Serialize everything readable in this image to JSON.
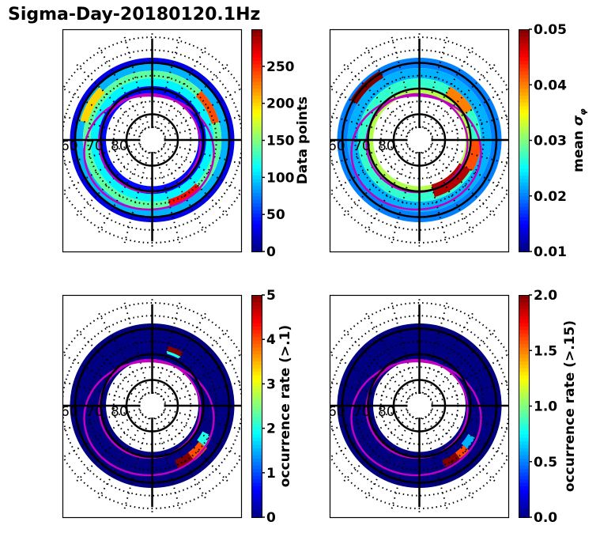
{
  "figure": {
    "title": "Sigma-Day-20180120.1Hz"
  },
  "chart_data": [
    {
      "type": "heatmap",
      "projection": "polar (magnetic latitude / MLT)",
      "panel": "top-left",
      "colormap": "jet",
      "colorbar": {
        "label": "Data points",
        "label_math": "",
        "range": [
          0,
          300
        ],
        "ticks": [
          0,
          50,
          100,
          150,
          200,
          250
        ],
        "tick_labels": [
          "0",
          "50",
          "100",
          "150",
          "200",
          "250"
        ]
      },
      "lat_labels": [
        "60",
        "70",
        "80"
      ],
      "lat_circles": [
        80,
        70,
        60
      ],
      "description": "Ring of binned counts between ~58 and ~75 MLAT; mostly 20-180, peaks ~250-280 on dusk-to-pre-midnight side and ~230 at dawn",
      "sectors": [
        {
          "mlt_from": 0,
          "mlt_to": 24,
          "lat_from": 58,
          "lat_to": 60,
          "value": 30
        },
        {
          "mlt_from": 0,
          "mlt_to": 24,
          "lat_from": 60,
          "lat_to": 63,
          "value": 90
        },
        {
          "mlt_from": 0,
          "mlt_to": 24,
          "lat_from": 63,
          "lat_to": 66,
          "value": 140
        },
        {
          "mlt_from": 0,
          "mlt_to": 24,
          "lat_from": 66,
          "lat_to": 69,
          "value": 110
        },
        {
          "mlt_from": 0,
          "mlt_to": 24,
          "lat_from": 69,
          "lat_to": 72,
          "value": 40
        },
        {
          "mlt_from": 1,
          "mlt_to": 3,
          "lat_from": 63,
          "lat_to": 66,
          "value": 260
        },
        {
          "mlt_from": 7,
          "mlt_to": 9,
          "lat_from": 63,
          "lat_to": 66,
          "value": 240
        },
        {
          "mlt_from": 15,
          "mlt_to": 17,
          "lat_from": 61,
          "lat_to": 64,
          "value": 200
        }
      ]
    },
    {
      "type": "heatmap",
      "projection": "polar (magnetic latitude / MLT)",
      "panel": "top-right",
      "colormap": "jet",
      "colorbar": {
        "label": "mean ",
        "label_math": "σφ",
        "range": [
          0.01,
          0.05
        ],
        "ticks": [
          0.01,
          0.02,
          0.03,
          0.04,
          0.05
        ],
        "tick_labels": [
          "0.01",
          "0.02",
          "0.03",
          "0.04",
          "0.05"
        ]
      },
      "lat_labels": [
        "60",
        "70",
        "80"
      ],
      "lat_circles": [
        80,
        70,
        60
      ],
      "description": "Mean sigma-phi mostly 0.015-0.025 at lower latitudes, enhanced 0.035-0.05 near 68-72 MLAT on night/dawn side",
      "sectors": [
        {
          "mlt_from": 0,
          "mlt_to": 24,
          "lat_from": 58,
          "lat_to": 62,
          "value": 0.02
        },
        {
          "mlt_from": 0,
          "mlt_to": 24,
          "lat_from": 62,
          "lat_to": 66,
          "value": 0.022
        },
        {
          "mlt_from": 0,
          "mlt_to": 24,
          "lat_from": 66,
          "lat_to": 70,
          "value": 0.027
        },
        {
          "mlt_from": 0,
          "mlt_to": 24,
          "lat_from": 70,
          "lat_to": 72,
          "value": 0.032
        },
        {
          "mlt_from": 1,
          "mlt_to": 4,
          "lat_from": 67,
          "lat_to": 72,
          "value": 0.048
        },
        {
          "mlt_from": 4,
          "mlt_to": 6,
          "lat_from": 66,
          "lat_to": 70,
          "value": 0.042
        },
        {
          "mlt_from": 8,
          "mlt_to": 10,
          "lat_from": 66,
          "lat_to": 70,
          "value": 0.04
        },
        {
          "mlt_from": 14,
          "mlt_to": 16,
          "lat_from": 59,
          "lat_to": 62,
          "value": 0.05
        }
      ]
    },
    {
      "type": "heatmap",
      "projection": "polar (magnetic latitude / MLT)",
      "panel": "bottom-left",
      "colormap": "jet",
      "colorbar": {
        "label": "occurrence rate (>.1)",
        "label_math": "",
        "range": [
          0,
          5
        ],
        "ticks": [
          0,
          1,
          2,
          3,
          4,
          5
        ],
        "tick_labels": [
          "0",
          "1",
          "2",
          "3",
          "4",
          "5"
        ]
      },
      "lat_labels": [
        "60",
        "70",
        "80"
      ],
      "lat_circles": [
        80,
        70,
        60
      ],
      "description": "Occurrence near 0 everywhere except a pre-midnight/night arc (~1-4 MLT, 63-70 MLAT) with values 2-5",
      "sectors": [
        {
          "mlt_from": 0,
          "mlt_to": 24,
          "lat_from": 58,
          "lat_to": 72,
          "value": 0
        },
        {
          "mlt_from": 1.5,
          "mlt_to": 2.5,
          "lat_from": 63,
          "lat_to": 67,
          "value": 5
        },
        {
          "mlt_from": 2.5,
          "mlt_to": 3.5,
          "lat_from": 63,
          "lat_to": 67,
          "value": 4
        },
        {
          "mlt_from": 3.5,
          "mlt_to": 4.2,
          "lat_from": 64,
          "lat_to": 68,
          "value": 2
        },
        {
          "mlt_from": 10,
          "mlt_to": 11,
          "lat_from": 66,
          "lat_to": 68,
          "value": 5
        },
        {
          "mlt_from": 10,
          "mlt_to": 11,
          "lat_from": 68,
          "lat_to": 69,
          "value": 2
        }
      ]
    },
    {
      "type": "heatmap",
      "projection": "polar (magnetic latitude / MLT)",
      "panel": "bottom-right",
      "colormap": "jet",
      "colorbar": {
        "label": "occurrence rate (>.15)",
        "label_math": "",
        "range": [
          0,
          2
        ],
        "ticks": [
          0.0,
          0.5,
          1.0,
          1.5,
          2.0
        ],
        "tick_labels": [
          "0.0",
          "0.5",
          "1.0",
          "1.5",
          "2.0"
        ]
      },
      "lat_labels": [
        "60",
        "70",
        "80"
      ],
      "lat_circles": [
        80,
        70,
        60
      ],
      "description": "Occurrence near 0 everywhere except narrow arc on night side (~1.5-4 MLT, 63-69 MLAT) with values 0.6-2",
      "sectors": [
        {
          "mlt_from": 0,
          "mlt_to": 24,
          "lat_from": 58,
          "lat_to": 72,
          "value": 0
        },
        {
          "mlt_from": 1.5,
          "mlt_to": 2.5,
          "lat_from": 64,
          "lat_to": 67,
          "value": 2
        },
        {
          "mlt_from": 2.5,
          "mlt_to": 3.2,
          "lat_from": 64,
          "lat_to": 67,
          "value": 1.6
        },
        {
          "mlt_from": 3.2,
          "mlt_to": 4,
          "lat_from": 65,
          "lat_to": 68,
          "value": 0.6
        }
      ]
    }
  ]
}
